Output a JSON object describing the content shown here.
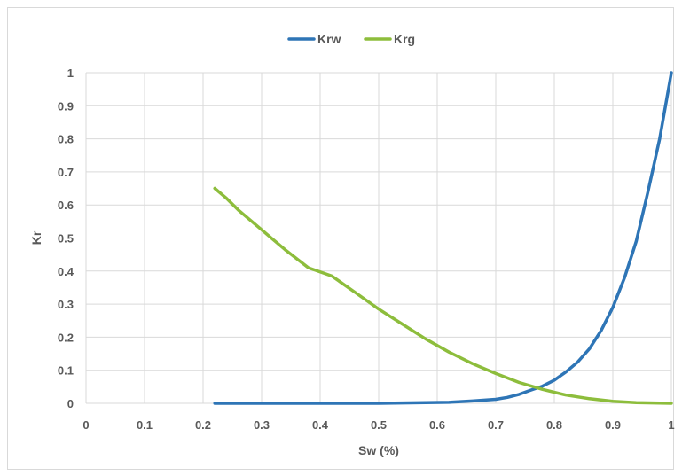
{
  "chart_data": {
    "type": "line",
    "title": "",
    "xlabel": "Sw (%)",
    "ylabel": "Kr",
    "xlim": [
      0,
      1
    ],
    "ylim": [
      0,
      1
    ],
    "x_ticks": [
      "0",
      "0.1",
      "0.2",
      "0.3",
      "0.4",
      "0.5",
      "0.6",
      "0.7",
      "0.8",
      "0.9",
      "1"
    ],
    "y_ticks": [
      "0",
      "0.1",
      "0.2",
      "0.3",
      "0.4",
      "0.5",
      "0.6",
      "0.7",
      "0.8",
      "0.9",
      "1"
    ],
    "grid": "vertical and horizontal",
    "legend_position": "top",
    "series": [
      {
        "name": "Krw",
        "color": "#2E75B6",
        "x": [
          0.22,
          0.26,
          0.3,
          0.34,
          0.38,
          0.42,
          0.46,
          0.5,
          0.54,
          0.58,
          0.62,
          0.66,
          0.7,
          0.72,
          0.74,
          0.76,
          0.78,
          0.8,
          0.82,
          0.84,
          0.86,
          0.88,
          0.9,
          0.92,
          0.94,
          0.96,
          0.98,
          1.0
        ],
        "y": [
          0,
          0,
          0,
          0,
          0,
          0,
          0,
          0,
          0.001,
          0.002,
          0.003,
          0.007,
          0.012,
          0.018,
          0.027,
          0.04,
          0.052,
          0.07,
          0.095,
          0.125,
          0.165,
          0.22,
          0.29,
          0.38,
          0.49,
          0.64,
          0.8,
          1.0
        ]
      },
      {
        "name": "Krg",
        "color": "#8DBD3C",
        "x": [
          0.22,
          0.24,
          0.26,
          0.3,
          0.32,
          0.34,
          0.38,
          0.42,
          0.46,
          0.5,
          0.54,
          0.58,
          0.62,
          0.66,
          0.7,
          0.74,
          0.78,
          0.82,
          0.86,
          0.9,
          0.94,
          0.98,
          1.0
        ],
        "y": [
          0.65,
          0.62,
          0.585,
          0.525,
          0.495,
          0.465,
          0.41,
          0.385,
          0.335,
          0.285,
          0.24,
          0.195,
          0.155,
          0.12,
          0.09,
          0.063,
          0.042,
          0.025,
          0.014,
          0.006,
          0.002,
          0.0005,
          0
        ]
      }
    ]
  }
}
